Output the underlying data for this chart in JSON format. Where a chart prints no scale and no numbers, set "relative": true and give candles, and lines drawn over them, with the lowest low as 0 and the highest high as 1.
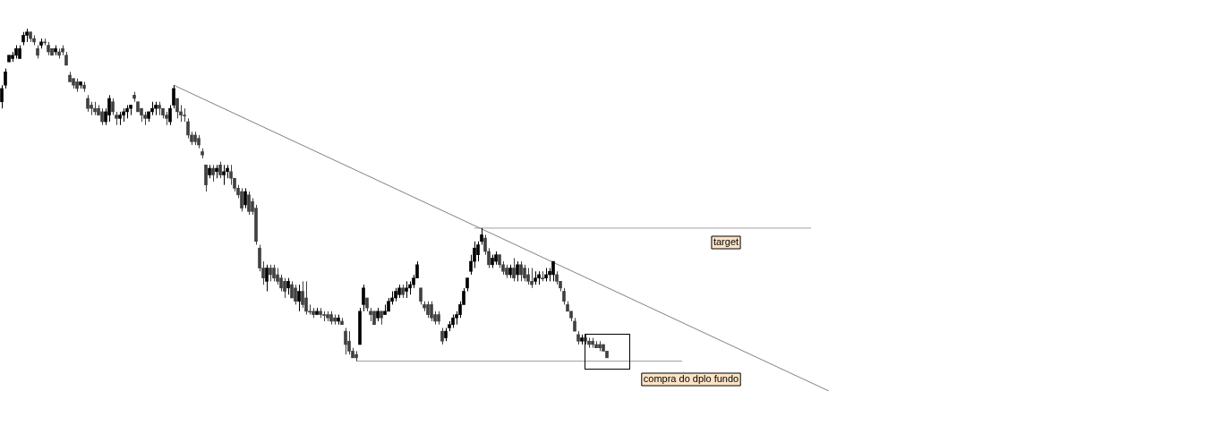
{
  "chart_data": {
    "type": "candlestick",
    "relative": true,
    "grid": false,
    "legend": false,
    "categories": [
      null,
      null,
      null,
      null,
      null,
      null,
      null,
      null,
      null,
      null,
      null,
      null,
      null,
      null,
      null,
      null,
      null,
      null,
      null,
      null,
      null,
      null,
      null,
      null,
      null,
      null,
      null,
      null,
      null,
      null,
      null,
      null,
      null,
      null,
      null,
      null,
      null,
      null,
      null,
      null,
      null,
      null,
      null,
      null,
      null,
      null,
      null,
      null,
      null,
      null,
      null,
      null,
      null,
      null,
      null,
      null,
      null,
      null,
      null,
      null,
      null,
      null,
      null,
      null,
      null,
      null,
      null,
      null,
      null,
      null,
      null,
      null,
      null,
      null,
      null,
      null,
      null,
      null,
      null,
      null,
      null,
      null,
      null,
      null,
      null,
      null,
      null,
      null,
      null,
      null,
      null,
      null,
      null,
      null,
      null,
      null,
      null,
      null,
      null,
      null,
      null,
      null,
      null,
      null,
      null,
      null,
      null,
      null,
      null,
      null,
      null,
      null,
      null,
      null,
      null,
      null,
      null,
      null,
      null,
      null,
      null,
      null,
      null,
      null,
      null,
      null,
      null,
      null,
      null,
      null,
      null,
      null,
      null,
      null,
      null,
      null,
      null,
      null,
      null,
      null,
      null,
      null,
      null,
      null,
      null,
      null,
      null,
      null,
      null,
      null,
      null,
      null,
      null,
      null,
      null,
      null,
      null,
      null,
      null,
      null,
      null,
      null,
      null,
      null,
      null,
      null,
      null,
      null,
      null,
      null,
      null,
      null,
      null,
      null,
      null,
      null,
      null,
      null,
      null,
      null,
      null,
      null,
      null,
      null,
      null,
      null,
      null,
      null,
      null,
      null,
      null,
      null,
      null,
      null,
      null,
      null,
      null,
      null,
      null,
      null,
      null,
      null,
      null,
      null,
      null,
      null,
      null,
      null,
      null,
      null,
      null,
      null,
      null,
      null,
      null,
      null,
      null,
      null,
      null,
      null,
      null,
      null,
      null,
      null,
      null,
      null,
      null,
      null,
      null,
      null,
      null,
      null,
      null,
      null,
      null,
      null
    ],
    "ohlc": [
      [
        0.78,
        0.83,
        0.76,
        0.82
      ],
      [
        0.83,
        0.88,
        0.82,
        0.87
      ],
      [
        0.9,
        0.92,
        0.9,
        0.92
      ],
      [
        0.91,
        0.93,
        0.9,
        0.92
      ],
      [
        0.92,
        0.95,
        0.91,
        0.94
      ],
      [
        0.91,
        0.95,
        0.91,
        0.94
      ],
      [
        0.96,
        0.99,
        0.95,
        0.98
      ],
      [
        0.98,
        1.0,
        0.96,
        0.99
      ],
      [
        0.99,
        0.99,
        0.96,
        0.97
      ],
      [
        0.97,
        0.98,
        0.95,
        0.96
      ],
      [
        0.94,
        0.95,
        0.91,
        0.92
      ],
      [
        0.95,
        0.97,
        0.94,
        0.96
      ],
      [
        0.96,
        0.97,
        0.95,
        0.96
      ],
      [
        0.95,
        0.96,
        0.92,
        0.93
      ],
      [
        0.94,
        0.94,
        0.92,
        0.92
      ],
      [
        0.93,
        0.95,
        0.92,
        0.94
      ],
      [
        0.93,
        0.94,
        0.91,
        0.92
      ],
      [
        0.94,
        0.95,
        0.92,
        0.93
      ],
      [
        0.92,
        0.93,
        0.89,
        0.89
      ],
      [
        0.86,
        0.87,
        0.84,
        0.84
      ],
      [
        0.85,
        0.85,
        0.82,
        0.83
      ],
      [
        0.84,
        0.85,
        0.81,
        0.82
      ],
      [
        0.83,
        0.84,
        0.82,
        0.84
      ],
      [
        0.83,
        0.84,
        0.81,
        0.82
      ],
      [
        0.79,
        0.8,
        0.75,
        0.76
      ],
      [
        0.77,
        0.78,
        0.74,
        0.76
      ],
      [
        0.76,
        0.78,
        0.74,
        0.75
      ],
      [
        0.76,
        0.77,
        0.74,
        0.74
      ],
      [
        0.75,
        0.76,
        0.71,
        0.72
      ],
      [
        0.72,
        0.76,
        0.71,
        0.75
      ],
      [
        0.74,
        0.8,
        0.72,
        0.79
      ],
      [
        0.78,
        0.79,
        0.74,
        0.75
      ],
      [
        0.74,
        0.75,
        0.71,
        0.73
      ],
      [
        0.73,
        0.75,
        0.71,
        0.74
      ],
      [
        0.74,
        0.76,
        0.72,
        0.75
      ],
      [
        0.75,
        0.77,
        0.73,
        0.76
      ],
      [
        0.76,
        0.77,
        0.74,
        0.77
      ],
      [
        0.8,
        0.81,
        0.78,
        0.79
      ],
      [
        0.78,
        0.78,
        0.75,
        0.75
      ],
      [
        0.76,
        0.76,
        0.72,
        0.74
      ],
      [
        0.74,
        0.75,
        0.71,
        0.73
      ],
      [
        0.73,
        0.75,
        0.72,
        0.75
      ],
      [
        0.75,
        0.78,
        0.74,
        0.76
      ],
      [
        0.76,
        0.78,
        0.74,
        0.77
      ],
      [
        0.77,
        0.78,
        0.74,
        0.76
      ],
      [
        0.76,
        0.76,
        0.73,
        0.74
      ],
      [
        0.74,
        0.75,
        0.71,
        0.73
      ],
      [
        0.72,
        0.77,
        0.71,
        0.76
      ],
      [
        0.77,
        0.83,
        0.76,
        0.82
      ],
      [
        0.79,
        0.79,
        0.73,
        0.75
      ],
      [
        0.75,
        0.77,
        0.72,
        0.74
      ],
      [
        0.74,
        0.76,
        0.72,
        0.74
      ],
      [
        0.72,
        0.73,
        0.67,
        0.68
      ],
      [
        0.68,
        0.69,
        0.65,
        0.66
      ],
      [
        0.68,
        0.69,
        0.65,
        0.66
      ],
      [
        0.67,
        0.68,
        0.64,
        0.65
      ],
      [
        0.63,
        0.64,
        0.61,
        0.62
      ],
      [
        0.59,
        0.59,
        0.51,
        0.53
      ],
      [
        0.56,
        0.59,
        0.55,
        0.58
      ],
      [
        0.58,
        0.59,
        0.54,
        0.56
      ],
      [
        0.57,
        0.59,
        0.55,
        0.58
      ],
      [
        0.59,
        0.6,
        0.55,
        0.56
      ],
      [
        0.56,
        0.59,
        0.53,
        0.57
      ],
      [
        0.57,
        0.59,
        0.55,
        0.58
      ],
      [
        0.57,
        0.59,
        0.53,
        0.55
      ],
      [
        0.55,
        0.55,
        0.51,
        0.52
      ],
      [
        0.52,
        0.53,
        0.49,
        0.5
      ],
      [
        0.51,
        0.52,
        0.45,
        0.46
      ],
      [
        0.47,
        0.52,
        0.46,
        0.51
      ],
      [
        0.5,
        0.51,
        0.44,
        0.45
      ],
      [
        0.48,
        0.49,
        0.44,
        0.45
      ],
      [
        0.46,
        0.47,
        0.35,
        0.36
      ],
      [
        0.34,
        0.35,
        0.27,
        0.28
      ],
      [
        0.28,
        0.3,
        0.23,
        0.25
      ],
      [
        0.24,
        0.29,
        0.21,
        0.28
      ],
      [
        0.28,
        0.29,
        0.24,
        0.26
      ],
      [
        0.28,
        0.29,
        0.24,
        0.25
      ],
      [
        0.26,
        0.28,
        0.23,
        0.24
      ],
      [
        0.25,
        0.26,
        0.21,
        0.22
      ],
      [
        0.24,
        0.25,
        0.19,
        0.21
      ],
      [
        0.22,
        0.25,
        0.2,
        0.24
      ],
      [
        0.23,
        0.24,
        0.19,
        0.19
      ],
      [
        0.22,
        0.23,
        0.17,
        0.18
      ],
      [
        0.18,
        0.23,
        0.15,
        0.21
      ],
      [
        0.21,
        0.24,
        0.16,
        0.17
      ],
      [
        0.19,
        0.24,
        0.14,
        0.15
      ],
      [
        0.15,
        0.17,
        0.14,
        0.15
      ],
      [
        0.15,
        0.16,
        0.13,
        0.14
      ],
      [
        0.14,
        0.16,
        0.14,
        0.15
      ],
      [
        0.15,
        0.16,
        0.13,
        0.14
      ],
      [
        0.14,
        0.15,
        0.12,
        0.14
      ],
      [
        0.14,
        0.15,
        0.12,
        0.13
      ],
      [
        0.14,
        0.15,
        0.11,
        0.12
      ],
      [
        0.13,
        0.14,
        0.11,
        0.12
      ],
      [
        0.12,
        0.14,
        0.11,
        0.13
      ],
      [
        0.12,
        0.13,
        0.11,
        0.11
      ],
      [
        0.09,
        0.1,
        0.02,
        0.05
      ],
      [
        0.06,
        0.09,
        0.02,
        0.03
      ],
      [
        0.03,
        0.04,
        0.01,
        0.01
      ],
      [
        0.02,
        0.03,
        0.0,
        0.01
      ],
      [
        0.05,
        0.16,
        0.05,
        0.15
      ],
      [
        0.17,
        0.23,
        0.15,
        0.22
      ],
      [
        0.19,
        0.19,
        0.15,
        0.16
      ],
      [
        0.15,
        0.16,
        0.12,
        0.14
      ],
      [
        0.15,
        0.15,
        0.11,
        0.11
      ],
      [
        0.13,
        0.16,
        0.12,
        0.15
      ],
      [
        0.15,
        0.15,
        0.11,
        0.13
      ],
      [
        0.14,
        0.17,
        0.14,
        0.15
      ],
      [
        0.15,
        0.19,
        0.15,
        0.18
      ],
      [
        0.18,
        0.21,
        0.17,
        0.19
      ],
      [
        0.19,
        0.22,
        0.18,
        0.21
      ],
      [
        0.2,
        0.23,
        0.19,
        0.22
      ],
      [
        0.22,
        0.23,
        0.19,
        0.2
      ],
      [
        0.21,
        0.24,
        0.19,
        0.22
      ],
      [
        0.22,
        0.24,
        0.2,
        0.23
      ],
      [
        0.23,
        0.26,
        0.22,
        0.25
      ],
      [
        0.25,
        0.3,
        0.25,
        0.29
      ],
      [
        0.22,
        0.22,
        0.17,
        0.18
      ],
      [
        0.17,
        0.18,
        0.15,
        0.16
      ],
      [
        0.17,
        0.18,
        0.13,
        0.14
      ],
      [
        0.17,
        0.18,
        0.12,
        0.13
      ],
      [
        0.14,
        0.15,
        0.11,
        0.12
      ],
      [
        0.14,
        0.15,
        0.11,
        0.12
      ],
      [
        0.09,
        0.1,
        0.05,
        0.06
      ],
      [
        0.07,
        0.1,
        0.06,
        0.09
      ],
      [
        0.1,
        0.12,
        0.09,
        0.11
      ],
      [
        0.11,
        0.14,
        0.1,
        0.13
      ],
      [
        0.13,
        0.15,
        0.11,
        0.14
      ],
      [
        0.14,
        0.18,
        0.13,
        0.17
      ],
      [
        0.17,
        0.22,
        0.17,
        0.21
      ],
      [
        0.22,
        0.25,
        0.21,
        0.25
      ],
      [
        0.27,
        0.32,
        0.26,
        0.3
      ],
      [
        0.3,
        0.36,
        0.28,
        0.34
      ],
      [
        0.32,
        0.36,
        0.3,
        0.35
      ],
      [
        0.36,
        0.4,
        0.35,
        0.38
      ],
      [
        0.37,
        0.38,
        0.32,
        0.33
      ],
      [
        0.33,
        0.34,
        0.28,
        0.29
      ],
      [
        0.29,
        0.32,
        0.28,
        0.31
      ],
      [
        0.3,
        0.33,
        0.29,
        0.32
      ],
      [
        0.32,
        0.32,
        0.28,
        0.29
      ],
      [
        0.29,
        0.3,
        0.26,
        0.27
      ],
      [
        0.28,
        0.29,
        0.25,
        0.26
      ],
      [
        0.26,
        0.29,
        0.25,
        0.28
      ],
      [
        0.28,
        0.31,
        0.24,
        0.25
      ],
      [
        0.26,
        0.3,
        0.24,
        0.29
      ],
      [
        0.29,
        0.3,
        0.24,
        0.26
      ],
      [
        0.28,
        0.29,
        0.24,
        0.25
      ],
      [
        0.26,
        0.28,
        0.23,
        0.24
      ],
      [
        0.24,
        0.28,
        0.22,
        0.23
      ],
      [
        0.24,
        0.27,
        0.23,
        0.25
      ],
      [
        0.25,
        0.27,
        0.23,
        0.26
      ],
      [
        0.25,
        0.27,
        0.24,
        0.25
      ],
      [
        0.25,
        0.28,
        0.24,
        0.26
      ],
      [
        0.26,
        0.28,
        0.24,
        0.27
      ],
      [
        0.26,
        0.3,
        0.24,
        0.3
      ],
      [
        0.26,
        0.27,
        0.23,
        0.24
      ],
      [
        0.24,
        0.24,
        0.21,
        0.22
      ],
      [
        0.21,
        0.22,
        0.17,
        0.18
      ],
      [
        0.17,
        0.18,
        0.15,
        0.15
      ],
      [
        0.15,
        0.15,
        0.12,
        0.13
      ],
      [
        0.12,
        0.13,
        0.09,
        0.09
      ],
      [
        0.08,
        0.09,
        0.05,
        0.06
      ],
      [
        0.06,
        0.08,
        0.05,
        0.07
      ],
      [
        0.07,
        0.08,
        0.05,
        0.06
      ],
      [
        0.06,
        0.07,
        0.04,
        0.05
      ],
      [
        0.06,
        0.07,
        0.04,
        0.05
      ],
      [
        0.05,
        0.06,
        0.04,
        0.04
      ],
      [
        0.05,
        0.06,
        0.03,
        0.04
      ],
      [
        0.05,
        0.05,
        0.03,
        0.03
      ],
      [
        0.03,
        0.03,
        0.01,
        0.01
      ],
      null,
      null,
      null,
      null,
      null,
      null,
      null,
      null,
      null,
      null,
      null,
      null,
      null,
      null,
      null,
      null,
      null,
      null,
      null,
      null,
      null,
      null,
      null,
      null,
      null,
      null,
      null,
      null,
      null,
      null,
      null,
      null,
      null,
      null,
      null,
      null,
      null,
      null,
      null,
      null,
      null,
      null,
      null,
      null,
      null,
      null,
      null,
      null,
      null,
      null,
      null,
      null,
      null,
      null,
      null,
      null,
      null,
      null,
      null,
      null,
      null,
      null,
      null,
      null,
      null,
      null
    ],
    "colors": [
      "#000000",
      "#000000",
      "#000000",
      "#000000",
      "#000000",
      "#000000",
      "#000000",
      "#000000",
      "#404040",
      "#404040",
      "#404040",
      "#000000",
      "#404040",
      "#404040",
      "#404040",
      "#000000",
      "#404040",
      "#404040",
      "#404040",
      "#404040",
      "#404040",
      "#404040",
      "#000000",
      "#404040",
      "#404040",
      "#404040",
      "#404040",
      "#404040",
      "#404040",
      "#000000",
      "#000000",
      "#404040",
      "#404040",
      "#000000",
      "#000000",
      "#000000",
      "#000000",
      "#404040",
      "#404040",
      "#404040",
      "#404040",
      "#000000",
      "#000000",
      "#000000",
      "#404040",
      "#404040",
      "#404040",
      "#000000",
      "#000000",
      "#404040",
      "#404040",
      "#404040",
      "#404040",
      "#404040",
      "#404040",
      "#404040",
      "#404040",
      "#404040",
      "#000000",
      "#404040",
      "#000000",
      "#404040",
      "#000000",
      "#000000",
      "#404040",
      "#404040",
      "#404040",
      "#404040",
      "#000000",
      "#404040",
      "#404040",
      "#404040",
      "#404040",
      "#404040",
      "#000000",
      "#404040",
      "#404040",
      "#404040",
      "#404040",
      "#404040",
      "#000000",
      "#404040",
      "#404040",
      "#000000",
      "#404040",
      "#404040",
      "#404040",
      "#404040",
      "#000000",
      "#404040",
      "#404040",
      "#404040",
      "#404040",
      "#404040",
      "#000000",
      "#404040",
      "#404040",
      "#404040",
      "#404040",
      "#404040",
      "#000000",
      "#000000",
      "#404040",
      "#404040",
      "#404040",
      "#000000",
      "#404040",
      "#000000",
      "#000000",
      "#000000",
      "#000000",
      "#000000",
      "#404040",
      "#000000",
      "#000000",
      "#000000",
      "#000000",
      "#404040",
      "#404040",
      "#404040",
      "#404040",
      "#404040",
      "#404040",
      "#404040",
      "#000000",
      "#000000",
      "#000000",
      "#000000",
      "#000000",
      "#000000",
      "#000000",
      "#000000",
      "#000000",
      "#000000",
      "#000000",
      "#404040",
      "#404040",
      "#000000",
      "#000000",
      "#404040",
      "#404040",
      "#404040",
      "#000000",
      "#404040",
      "#000000",
      "#404040",
      "#404040",
      "#404040",
      "#404040",
      "#000000",
      "#000000",
      "#404040",
      "#000000",
      "#000000",
      "#000000",
      "#404040",
      "#404040",
      "#404040",
      "#404040",
      "#404040",
      "#404040",
      "#404040",
      "#000000",
      "#404040",
      "#404040",
      "#404040",
      "#404040",
      "#404040",
      "#404040",
      "#404040",
      null,
      null,
      null,
      null,
      null,
      null,
      null,
      null,
      null,
      null,
      null,
      null,
      null,
      null,
      null,
      null,
      null,
      null,
      null,
      null,
      null,
      null,
      null,
      null,
      null,
      null,
      null,
      null,
      null,
      null,
      null,
      null,
      null,
      null,
      null,
      null,
      null,
      null,
      null,
      null,
      null,
      null,
      null,
      null,
      null,
      null,
      null,
      null,
      null,
      null,
      null,
      null,
      null,
      null,
      null,
      null,
      null,
      null,
      null,
      null,
      null,
      null,
      null,
      null,
      null,
      null
    ],
    "series": [
      {
        "type": "line",
        "color": "#808080",
        "values": [
          null,
          null,
          null,
          null,
          null,
          null,
          null,
          null,
          null,
          null,
          null,
          null,
          null,
          null,
          null,
          null,
          null,
          null,
          null,
          null,
          null,
          null,
          null,
          null,
          null,
          null,
          null,
          null,
          null,
          null,
          null,
          null,
          null,
          null,
          null,
          null,
          null,
          null,
          null,
          null,
          null,
          null,
          null,
          null,
          null,
          null,
          null,
          null,
          0.83,
          null,
          null,
          null,
          null,
          null,
          null,
          null,
          null,
          null,
          null,
          null,
          null,
          null,
          null,
          null,
          null,
          null,
          null,
          null,
          null,
          null,
          null,
          null,
          null,
          null,
          null,
          null,
          null,
          null,
          null,
          null,
          null,
          null,
          null,
          null,
          null,
          null,
          null,
          null,
          null,
          null,
          null,
          null,
          null,
          null,
          null,
          null,
          null,
          null,
          null,
          null,
          null,
          null,
          null,
          null,
          null,
          null,
          null,
          null,
          null,
          null,
          null,
          null,
          null,
          null,
          null,
          null,
          null,
          null,
          null,
          null,
          null,
          null,
          null,
          null,
          null,
          null,
          null,
          null,
          null,
          null,
          null,
          null,
          null,
          null,
          null,
          null,
          null,
          null,
          null,
          null,
          null,
          null,
          null,
          null,
          null,
          null,
          null,
          null,
          null,
          null,
          null,
          null,
          null,
          null,
          null,
          null,
          null,
          null,
          null,
          null,
          null,
          null,
          null,
          null,
          null,
          null,
          null,
          null,
          null,
          null,
          null,
          null,
          null,
          null,
          null,
          null,
          null,
          null,
          null,
          null,
          null,
          null,
          null,
          null,
          null,
          null,
          null,
          null,
          null,
          null,
          null,
          null,
          null,
          null,
          null,
          null,
          null,
          null,
          null,
          null,
          null,
          null,
          null,
          null,
          null,
          null,
          null,
          null,
          null,
          null,
          null,
          null,
          null,
          null,
          null,
          null,
          null,
          null,
          null,
          null,
          null,
          null,
          null,
          null,
          null,
          null,
          null,
          null,
          null,
          null,
          null,
          -0.09,
          null,
          null,
          null,
          null
        ]
      },
      {
        "type": "line",
        "color": "#a0a0a0",
        "values": [
          null,
          null,
          null,
          null,
          null,
          null,
          null,
          null,
          null,
          null,
          null,
          null,
          null,
          null,
          null,
          null,
          null,
          null,
          null,
          null,
          null,
          null,
          null,
          null,
          null,
          null,
          null,
          null,
          null,
          null,
          null,
          null,
          null,
          null,
          null,
          null,
          null,
          null,
          null,
          null,
          null,
          null,
          null,
          null,
          null,
          null,
          null,
          null,
          null,
          null,
          null,
          null,
          null,
          null,
          null,
          null,
          null,
          null,
          null,
          null,
          null,
          null,
          null,
          null,
          null,
          null,
          null,
          null,
          null,
          null,
          null,
          null,
          null,
          null,
          null,
          null,
          null,
          null,
          null,
          null,
          null,
          null,
          null,
          null,
          null,
          null,
          null,
          null,
          null,
          null,
          null,
          null,
          null,
          null,
          null,
          null,
          null,
          null,
          null,
          null,
          null,
          null,
          null,
          null,
          null,
          null,
          null,
          null,
          null,
          null,
          null,
          null,
          null,
          null,
          null,
          null,
          null,
          null,
          null,
          null,
          null,
          null,
          null,
          null,
          null,
          null,
          null,
          null,
          null,
          null,
          null,
          null,
          0.4,
          null,
          null,
          null,
          null,
          null,
          null,
          null,
          null,
          null,
          null,
          null,
          null,
          null,
          null,
          null,
          null,
          null,
          null,
          null,
          null,
          null,
          null,
          null,
          null,
          null,
          null,
          null,
          null,
          null,
          null,
          null,
          null,
          null,
          null,
          null,
          null,
          null,
          null,
          null,
          null,
          null,
          null,
          null,
          null,
          null,
          null,
          null,
          null,
          null,
          null,
          null,
          null,
          null,
          null,
          null,
          null,
          null,
          null,
          null,
          null,
          null,
          null,
          null,
          null,
          null,
          null,
          null,
          null,
          null,
          null,
          null,
          null,
          null,
          null,
          null,
          null,
          null,
          null,
          null,
          null,
          null,
          null,
          null,
          null,
          null,
          null,
          null,
          null,
          null,
          null,
          null,
          null,
          null,
          0.4,
          null,
          null,
          null,
          null,
          null,
          null,
          null,
          null,
          null
        ]
      },
      {
        "type": "line",
        "color": "#a0a0a0",
        "values": [
          null,
          null,
          null,
          null,
          null,
          null,
          null,
          null,
          null,
          null,
          null,
          null,
          null,
          null,
          null,
          null,
          null,
          null,
          null,
          null,
          null,
          null,
          null,
          null,
          null,
          null,
          null,
          null,
          null,
          null,
          null,
          null,
          null,
          null,
          null,
          null,
          null,
          null,
          null,
          null,
          null,
          null,
          null,
          null,
          null,
          null,
          null,
          null,
          null,
          null,
          null,
          null,
          null,
          null,
          null,
          null,
          null,
          null,
          null,
          null,
          null,
          null,
          null,
          null,
          null,
          null,
          null,
          null,
          null,
          null,
          null,
          null,
          null,
          null,
          null,
          null,
          null,
          null,
          null,
          null,
          null,
          null,
          null,
          null,
          null,
          null,
          null,
          null,
          null,
          null,
          null,
          null,
          null,
          null,
          null,
          null,
          null,
          null,
          null,
          0,
          null,
          null,
          null,
          null,
          null,
          null,
          null,
          null,
          null,
          null,
          null,
          null,
          null,
          null,
          null,
          null,
          null,
          null,
          null,
          null,
          null,
          null,
          null,
          null,
          null,
          null,
          null,
          null,
          null,
          null,
          null,
          null,
          null,
          null,
          null,
          null,
          null,
          null,
          null,
          null,
          null,
          null,
          null,
          null,
          null,
          null,
          null,
          null,
          null,
          null,
          null,
          null,
          null,
          null,
          null,
          null,
          null,
          null,
          null,
          null,
          null,
          null,
          null,
          null,
          null,
          null,
          null,
          null,
          null,
          null,
          null,
          null,
          null,
          null,
          null,
          null,
          null,
          null,
          null,
          null,
          null,
          null,
          null,
          null,
          null,
          null,
          null,
          null,
          null,
          null,
          0,
          null,
          null,
          null,
          null,
          null,
          null,
          null,
          null,
          null,
          null,
          null,
          null,
          null,
          null,
          null,
          null,
          null,
          null,
          null,
          null,
          null,
          null,
          null,
          null,
          null,
          null,
          null,
          null,
          null,
          null,
          null,
          null,
          null,
          null,
          null,
          null,
          null,
          null,
          null,
          null,
          null,
          null,
          null,
          null,
          null
        ]
      }
    ],
    "annotations": [
      "target",
      "compra do dplo fundo"
    ]
  }
}
